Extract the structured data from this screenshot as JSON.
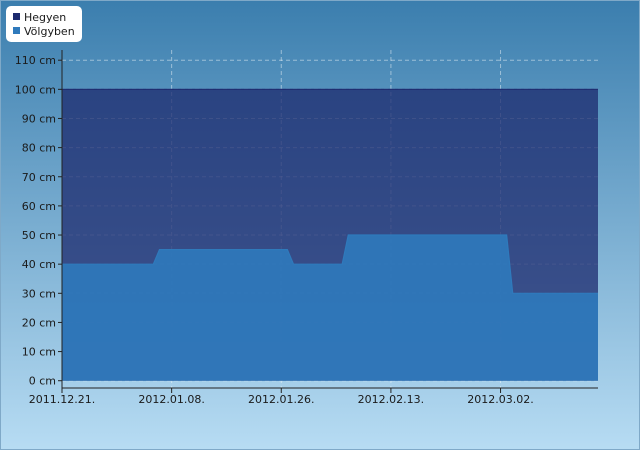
{
  "chart_data": {
    "type": "area",
    "x": [
      "2011.12.21.",
      "2012.01.05.",
      "2012.01.06.",
      "2012.01.27.",
      "2012.01.28.",
      "2012.02.05.",
      "2012.02.06.",
      "2012.03.03.",
      "2012.03.04.",
      "2012.03.18."
    ],
    "series": [
      {
        "name": "Hegyen",
        "color": "#1c2a6e",
        "values": [
          100,
          100,
          100,
          100,
          100,
          100,
          100,
          100,
          100,
          100
        ]
      },
      {
        "name": "Völgyben",
        "color": "#2f7abc",
        "values": [
          40,
          40,
          45,
          45,
          40,
          40,
          50,
          50,
          30,
          30
        ]
      }
    ],
    "xlim": [
      "2011.12.21.",
      "2012.03.18."
    ],
    "xticks": [
      "2011.12.21.",
      "2012.01.08.",
      "2012.01.26.",
      "2012.02.13.",
      "2012.03.02."
    ],
    "ylim": [
      -2.5,
      113.5
    ],
    "yticks": [
      {
        "value": 0,
        "label": "0 cm"
      },
      {
        "value": 10,
        "label": "10 cm"
      },
      {
        "value": 20,
        "label": "20 cm"
      },
      {
        "value": 30,
        "label": "30 cm"
      },
      {
        "value": 40,
        "label": "40 cm"
      },
      {
        "value": 50,
        "label": "50 cm"
      },
      {
        "value": 60,
        "label": "60 cm"
      },
      {
        "value": 70,
        "label": "70 cm"
      },
      {
        "value": 80,
        "label": "80 cm"
      },
      {
        "value": 90,
        "label": "90 cm"
      },
      {
        "value": 100,
        "label": "100 cm"
      },
      {
        "value": 110,
        "label": "110 cm"
      }
    ],
    "grid": true,
    "legend": "top-left"
  }
}
